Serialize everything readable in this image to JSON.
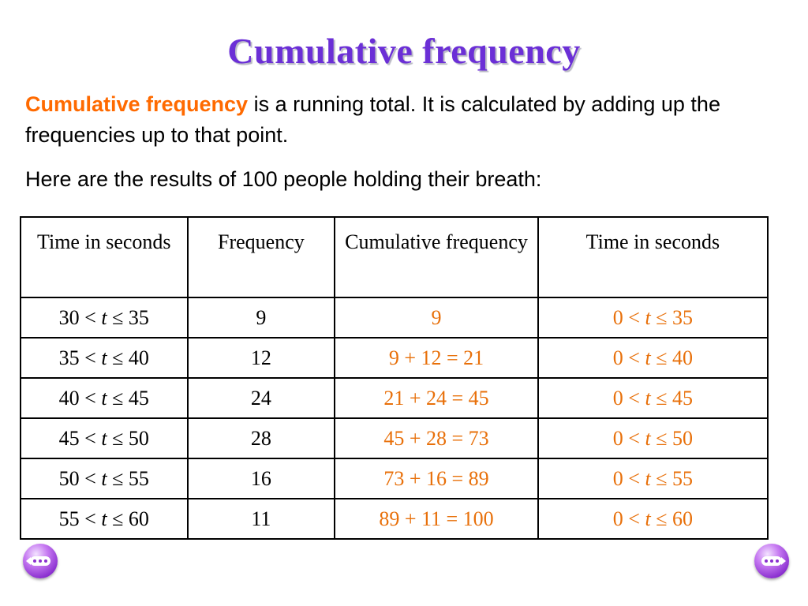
{
  "title": "Cumulative frequency",
  "intro": {
    "highlight": "Cumulative frequency",
    "rest": " is a running total. It is calculated by adding up the frequencies up to that point."
  },
  "para2": "Here are the results of 100 people holding their breath:",
  "table": {
    "headers": [
      "Time in seconds",
      "Frequency",
      "Cumulative frequency",
      "Time in seconds"
    ],
    "rows": [
      {
        "lower": "30",
        "upper": "35",
        "frequency": "9",
        "cumulative": "9",
        "cum_lower": "0",
        "cum_upper": "35"
      },
      {
        "lower": "35",
        "upper": "40",
        "frequency": "12",
        "cumulative": "9 + 12 = 21",
        "cum_lower": "0",
        "cum_upper": "40"
      },
      {
        "lower": "40",
        "upper": "45",
        "frequency": "24",
        "cumulative": "21 + 24 = 45",
        "cum_lower": "0",
        "cum_upper": "45"
      },
      {
        "lower": "45",
        "upper": "50",
        "frequency": "28",
        "cumulative": "45 + 28 = 73",
        "cum_lower": "0",
        "cum_upper": "50"
      },
      {
        "lower": "50",
        "upper": "55",
        "frequency": "16",
        "cumulative": "73 + 16 = 89",
        "cum_lower": "0",
        "cum_upper": "55"
      },
      {
        "lower": "55",
        "upper": "60",
        "frequency": "11",
        "cumulative": "89 + 11 = 100",
        "cum_lower": "0",
        "cum_upper": "60"
      }
    ]
  },
  "symbols": {
    "variable": "t",
    "lt": "<",
    "le": "≤"
  },
  "colors": {
    "title": "#6b2fd6",
    "highlight": "#ff6a00",
    "cumulative": "#e8700a",
    "nav_button": "#8a2fcf"
  },
  "icons": {
    "prev": "previous-slide-icon",
    "next": "next-slide-icon"
  }
}
